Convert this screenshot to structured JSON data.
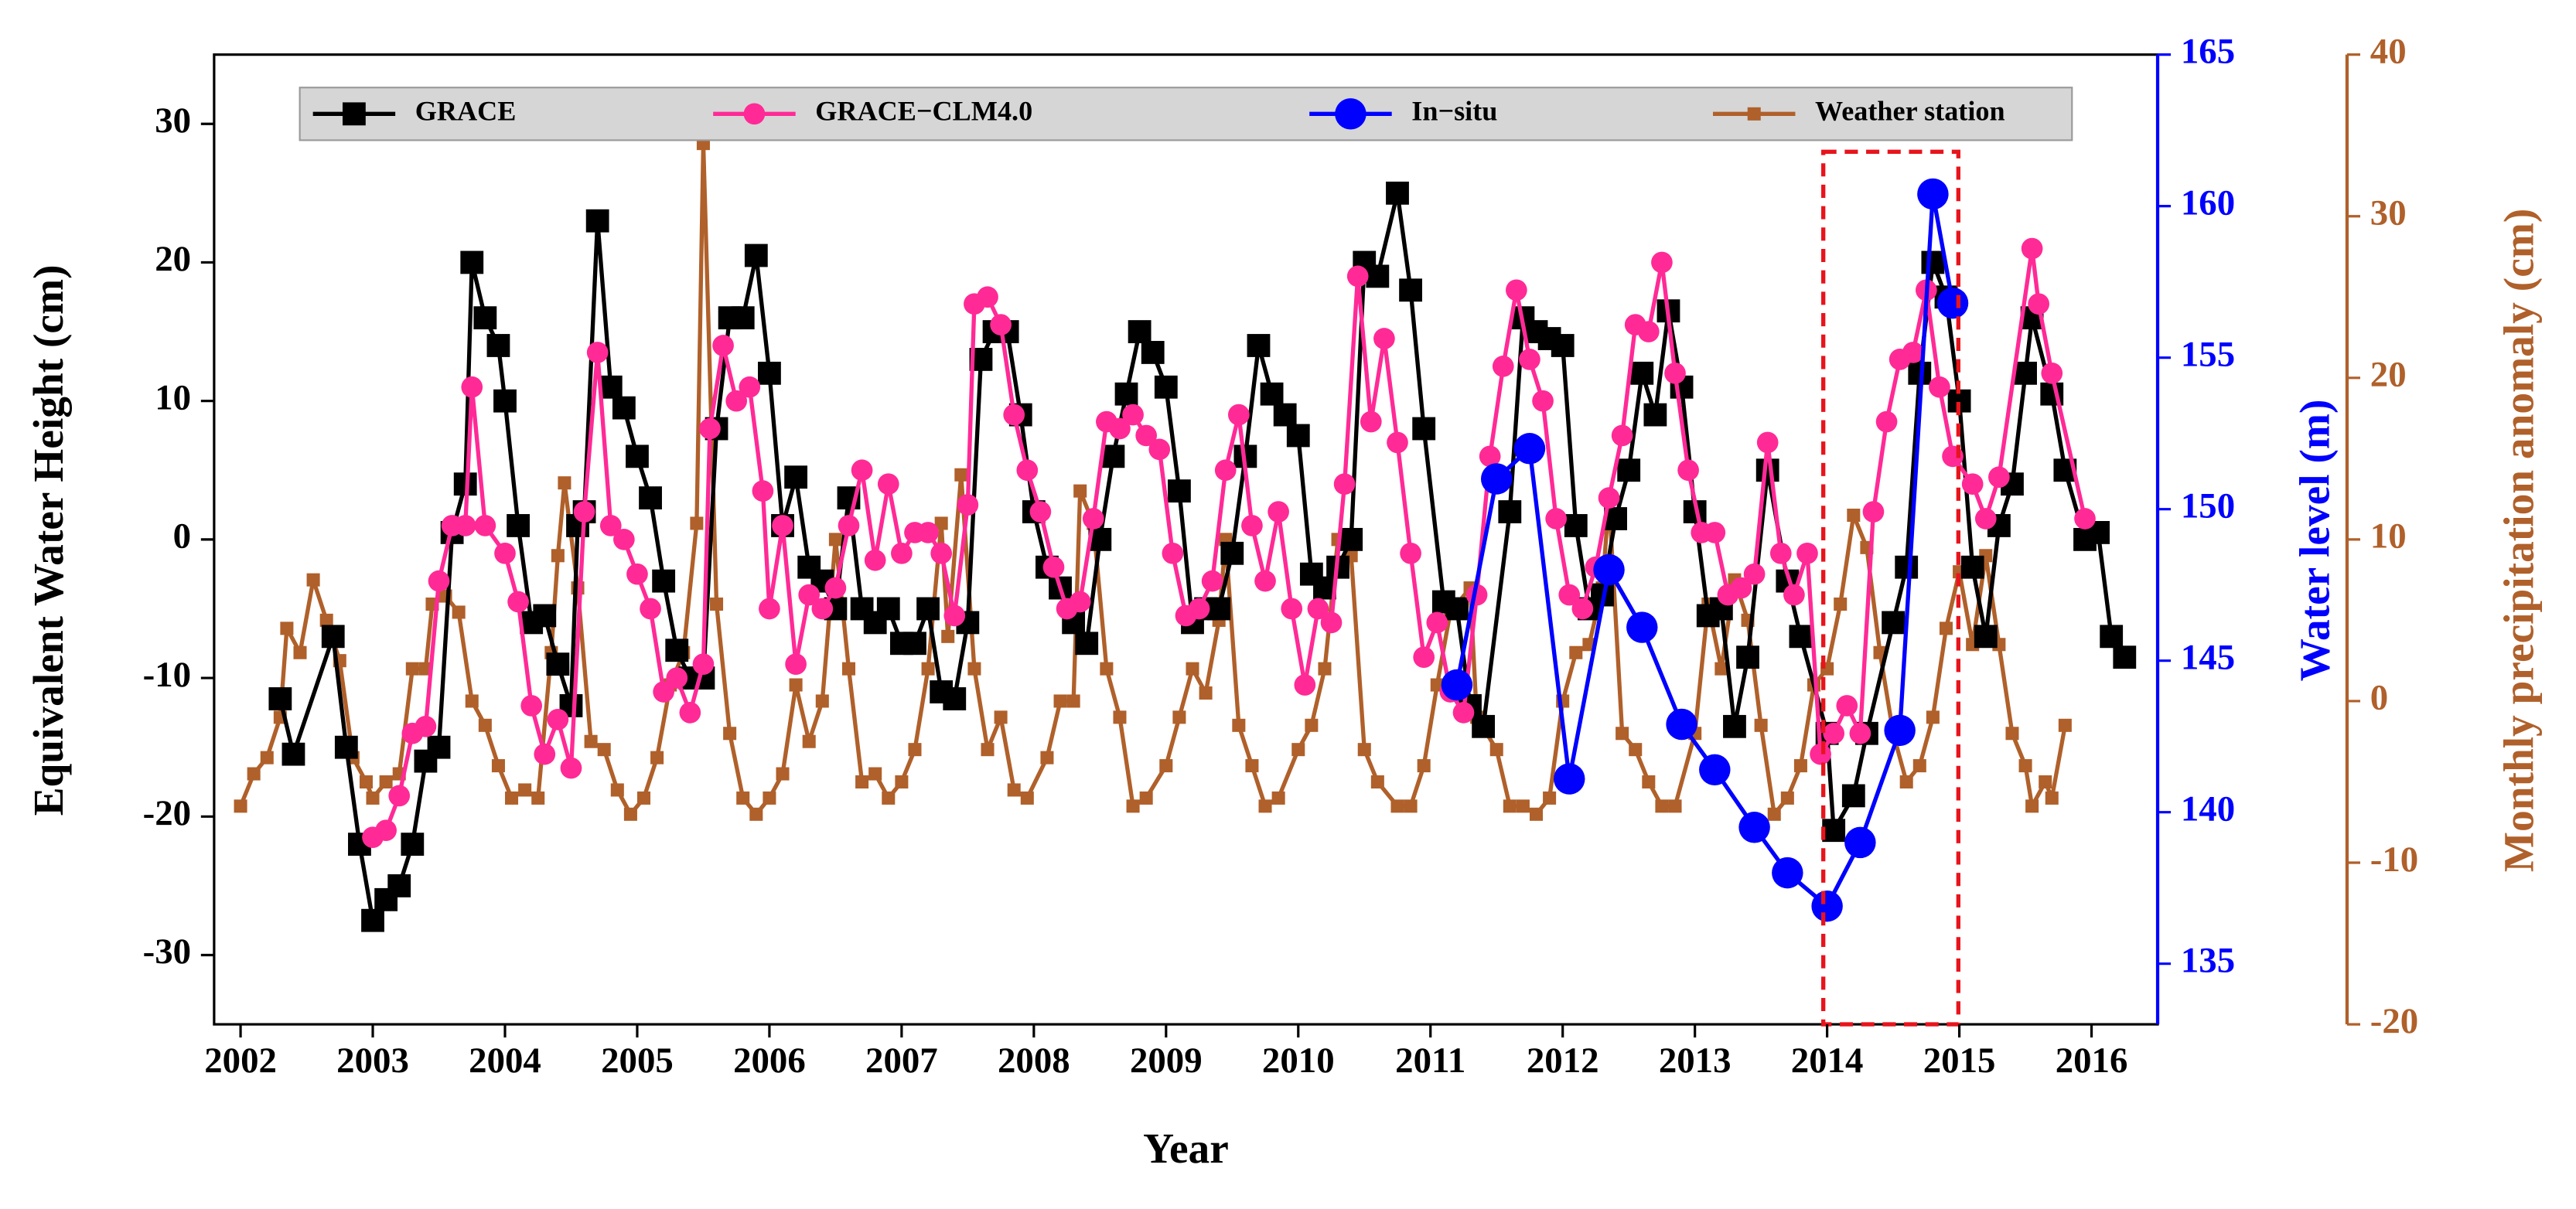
{
  "chart_data": {
    "type": "line",
    "xlabel": "Year",
    "ylabel": "Equivalent Water Height (cm)",
    "y2label": "Water level (m)",
    "y3label": "Monthly precipitation anomaly (cm)",
    "y2color": "#0000ff",
    "y3color": "#b0602a",
    "xlim": [
      2001.8,
      2016.5
    ],
    "xticks": [
      2002,
      2003,
      2004,
      2005,
      2006,
      2007,
      2008,
      2009,
      2010,
      2011,
      2012,
      2013,
      2014,
      2015,
      2016
    ],
    "ylim": [
      -35,
      35
    ],
    "yticks": [
      -30,
      -20,
      -10,
      0,
      10,
      20,
      30
    ],
    "y2lim": [
      133,
      165
    ],
    "y2ticks": [
      135,
      140,
      145,
      150,
      155,
      160,
      165
    ],
    "y3lim": [
      -20,
      40
    ],
    "y3ticks": [
      -20,
      -10,
      0,
      10,
      20,
      30,
      40
    ],
    "legend": "top",
    "series": [
      {
        "name": "GRACE",
        "color": "#000000",
        "marker": "square",
        "axis": "y",
        "x": [
          2002.3,
          2002.4,
          2002.7,
          2002.8,
          2002.9,
          2003.0,
          2003.1,
          2003.2,
          2003.3,
          2003.4,
          2003.5,
          2003.6,
          2003.7,
          2003.75,
          2003.85,
          2003.95,
          2004.0,
          2004.1,
          2004.2,
          2004.3,
          2004.4,
          2004.5,
          2004.55,
          2004.6,
          2004.7,
          2004.8,
          2004.9,
          2005.0,
          2005.1,
          2005.2,
          2005.3,
          2005.4,
          2005.5,
          2005.6,
          2005.7,
          2005.8,
          2005.9,
          2006.0,
          2006.1,
          2006.2,
          2006.3,
          2006.4,
          2006.5,
          2006.6,
          2006.7,
          2006.8,
          2006.9,
          2007.0,
          2007.1,
          2007.2,
          2007.3,
          2007.4,
          2007.5,
          2007.6,
          2007.7,
          2007.8,
          2007.9,
          2008.0,
          2008.1,
          2008.2,
          2008.3,
          2008.4,
          2008.5,
          2008.6,
          2008.7,
          2008.8,
          2008.9,
          2009.0,
          2009.1,
          2009.2,
          2009.3,
          2009.4,
          2009.5,
          2009.6,
          2009.7,
          2009.8,
          2009.9,
          2010.0,
          2010.1,
          2010.2,
          2010.3,
          2010.4,
          2010.5,
          2010.6,
          2010.75,
          2010.85,
          2010.95,
          2011.1,
          2011.2,
          2011.3,
          2011.4,
          2011.6,
          2011.7,
          2011.8,
          2011.9,
          2012.0,
          2012.1,
          2012.2,
          2012.3,
          2012.4,
          2012.5,
          2012.6,
          2012.7,
          2012.8,
          2012.9,
          2013.0,
          2013.1,
          2013.2,
          2013.3,
          2013.4,
          2013.55,
          2013.7,
          2013.8,
          2014.0,
          2014.05,
          2014.2,
          2014.3,
          2014.5,
          2014.6,
          2014.7,
          2014.8,
          2014.9,
          2015.0,
          2015.1,
          2015.2,
          2015.3,
          2015.4,
          2015.5,
          2015.55,
          2015.7,
          2015.8,
          2015.95,
          2016.05,
          2016.15,
          2016.25
        ],
        "values": [
          -11.5,
          -15.5,
          -7,
          -15,
          -22,
          -27.5,
          -26,
          -25,
          -22,
          -16,
          -15,
          0.5,
          4,
          20,
          16,
          14,
          10,
          1,
          -6,
          -5.5,
          -9,
          -12,
          1,
          2,
          23,
          11,
          9.5,
          6,
          3,
          -3,
          -8,
          -10,
          -10,
          8,
          16,
          16,
          20.5,
          12,
          1,
          4.5,
          -2,
          -3,
          -5,
          3,
          -5,
          -6,
          -5,
          -7.5,
          -7.5,
          -5,
          -11,
          -11.5,
          -6,
          13,
          15,
          15,
          9,
          2,
          -2,
          -3.5,
          -6,
          -7.5,
          0,
          6,
          10.5,
          15,
          13.5,
          11,
          3.5,
          -6,
          -5,
          -5,
          -1,
          6,
          14,
          10.5,
          9,
          7.5,
          -2.5,
          -3.5,
          -2,
          0,
          20,
          19,
          25,
          18,
          8,
          -4.5,
          -5,
          -12,
          -13.5,
          2,
          16,
          15,
          14.5,
          14,
          1,
          -5,
          -4,
          1.5,
          5,
          12,
          9,
          16.5,
          11,
          2,
          -5.5,
          -5,
          -13.5,
          -8.5,
          5,
          -3,
          -7,
          -14,
          -21,
          -18.5,
          -14,
          -6,
          -2,
          12,
          20,
          17.5,
          10,
          -2,
          -7,
          1,
          4,
          12,
          16,
          10.5,
          5,
          0,
          0.5,
          -7,
          -8.5
        ]
      },
      {
        "name": "GRACE−CLM4.0",
        "color": "#ff2a96",
        "marker": "circle",
        "axis": "y",
        "x": [
          2003.0,
          2003.1,
          2003.2,
          2003.3,
          2003.4,
          2003.5,
          2003.6,
          2003.7,
          2003.75,
          2003.85,
          2004.0,
          2004.1,
          2004.2,
          2004.3,
          2004.4,
          2004.5,
          2004.6,
          2004.7,
          2004.8,
          2004.9,
          2005.0,
          2005.1,
          2005.2,
          2005.3,
          2005.4,
          2005.5,
          2005.55,
          2005.65,
          2005.75,
          2005.85,
          2005.95,
          2006.0,
          2006.1,
          2006.2,
          2006.3,
          2006.4,
          2006.5,
          2006.6,
          2006.7,
          2006.8,
          2006.9,
          2007.0,
          2007.1,
          2007.2,
          2007.3,
          2007.4,
          2007.5,
          2007.55,
          2007.65,
          2007.75,
          2007.85,
          2007.95,
          2008.05,
          2008.15,
          2008.25,
          2008.35,
          2008.45,
          2008.55,
          2008.65,
          2008.75,
          2008.85,
          2008.95,
          2009.05,
          2009.15,
          2009.25,
          2009.35,
          2009.45,
          2009.55,
          2009.65,
          2009.75,
          2009.85,
          2009.95,
          2010.05,
          2010.15,
          2010.25,
          2010.35,
          2010.45,
          2010.55,
          2010.65,
          2010.75,
          2010.85,
          2010.95,
          2011.05,
          2011.15,
          2011.25,
          2011.35,
          2011.45,
          2011.55,
          2011.65,
          2011.75,
          2011.85,
          2011.95,
          2012.05,
          2012.15,
          2012.25,
          2012.35,
          2012.45,
          2012.55,
          2012.65,
          2012.75,
          2012.85,
          2012.95,
          2013.05,
          2013.15,
          2013.25,
          2013.35,
          2013.45,
          2013.55,
          2013.65,
          2013.75,
          2013.85,
          2013.95,
          2014.05,
          2014.15,
          2014.25,
          2014.35,
          2014.45,
          2014.55,
          2014.65,
          2014.75,
          2014.85,
          2014.95,
          2015.1,
          2015.2,
          2015.3,
          2015.55,
          2015.6,
          2015.7,
          2015.95
        ],
        "values": [
          -21.5,
          -21,
          -18.5,
          -14,
          -13.5,
          -3,
          1,
          1,
          11,
          1,
          -1,
          -4.5,
          -12,
          -15.5,
          -13,
          -16.5,
          2,
          13.5,
          1,
          0,
          -2.5,
          -5,
          -11,
          -10,
          -12.5,
          -9,
          8,
          14,
          10,
          11,
          3.5,
          -5,
          1,
          -9,
          -4,
          -5,
          -3.5,
          1,
          5,
          -1.5,
          4,
          -1,
          0.5,
          0.5,
          -1,
          -5.5,
          2.5,
          17,
          17.5,
          15.5,
          9,
          5,
          2,
          -2,
          -5,
          -4.5,
          1.5,
          8.5,
          8,
          9,
          7.5,
          6.5,
          -1,
          -5.5,
          -5,
          -3,
          5,
          9,
          1,
          -3,
          2,
          -5,
          -10.5,
          -5,
          -6,
          4,
          19,
          8.5,
          14.5,
          7,
          -1,
          -8.5,
          -6,
          -11,
          -12.5,
          -4,
          6,
          12.5,
          18,
          13,
          10,
          1.5,
          -4,
          -5,
          -2,
          3,
          7.5,
          15.5,
          15,
          20,
          12,
          5,
          0.5,
          0.5,
          -4,
          -3.5,
          -2.5,
          7,
          -1,
          -4,
          -1,
          -15.5,
          -14,
          -12,
          -14,
          2,
          8.5,
          13,
          13.5,
          18,
          11,
          6,
          4,
          1.5,
          4.5,
          21,
          17,
          12,
          1.5
        ]
      },
      {
        "name": "In−situ",
        "color": "#0000ff",
        "marker": "circle",
        "axis": "y2",
        "x": [
          2011.2,
          2011.5,
          2011.75,
          2012.05,
          2012.35,
          2012.6,
          2012.9,
          2013.15,
          2013.45,
          2013.7,
          2014.0,
          2014.25,
          2014.55,
          2014.8,
          2014.95
        ],
        "values": [
          144.2,
          151,
          152,
          141.1,
          148,
          146.1,
          142.9,
          141.4,
          139.5,
          138,
          136.9,
          139,
          142.7,
          160.4,
          156.8
        ]
      },
      {
        "name": "Weather station",
        "color": "#b0602a",
        "marker": "square",
        "axis": "y3",
        "x": [
          2002.0,
          2002.1,
          2002.2,
          2002.3,
          2002.35,
          2002.45,
          2002.55,
          2002.65,
          2002.75,
          2002.85,
          2002.95,
          2003.0,
          2003.1,
          2003.2,
          2003.3,
          2003.4,
          2003.45,
          2003.55,
          2003.65,
          2003.75,
          2003.85,
          2003.95,
          2004.05,
          2004.15,
          2004.25,
          2004.35,
          2004.4,
          2004.45,
          2004.55,
          2004.65,
          2004.75,
          2004.85,
          2004.95,
          2005.05,
          2005.15,
          2005.25,
          2005.35,
          2005.45,
          2005.5,
          2005.6,
          2005.7,
          2005.8,
          2005.9,
          2006.0,
          2006.1,
          2006.2,
          2006.3,
          2006.4,
          2006.5,
          2006.6,
          2006.7,
          2006.8,
          2006.9,
          2007.0,
          2007.1,
          2007.2,
          2007.3,
          2007.35,
          2007.45,
          2007.55,
          2007.65,
          2007.75,
          2007.85,
          2007.95,
          2008.1,
          2008.2,
          2008.3,
          2008.35,
          2008.45,
          2008.55,
          2008.65,
          2008.75,
          2008.85,
          2009.0,
          2009.1,
          2009.2,
          2009.3,
          2009.4,
          2009.45,
          2009.55,
          2009.65,
          2009.75,
          2009.85,
          2010.0,
          2010.1,
          2010.2,
          2010.3,
          2010.4,
          2010.5,
          2010.6,
          2010.75,
          2010.85,
          2010.95,
          2011.05,
          2011.15,
          2011.3,
          2011.35,
          2011.5,
          2011.6,
          2011.7,
          2011.8,
          2011.9,
          2012.0,
          2012.1,
          2012.2,
          2012.3,
          2012.35,
          2012.45,
          2012.55,
          2012.65,
          2012.75,
          2012.85,
          2013.0,
          2013.1,
          2013.2,
          2013.3,
          2013.4,
          2013.5,
          2013.6,
          2013.7,
          2013.8,
          2013.9,
          2014.0,
          2014.1,
          2014.2,
          2014.3,
          2014.4,
          2014.5,
          2014.6,
          2014.7,
          2014.8,
          2014.9,
          2015.0,
          2015.1,
          2015.2,
          2015.3,
          2015.4,
          2015.5,
          2015.55,
          2015.65,
          2015.7,
          2015.8
        ],
        "values": [
          -6.5,
          -4.5,
          -3.5,
          -1,
          4.5,
          3,
          7.5,
          5,
          2.5,
          -3.5,
          -5,
          -6,
          -5,
          -4.5,
          2,
          2,
          6,
          6.5,
          5.5,
          0,
          -1.5,
          -4,
          -6,
          -5.5,
          -6,
          3,
          9,
          13.5,
          7,
          -2.5,
          -3,
          -5.5,
          -7,
          -6,
          -3.5,
          1,
          3,
          11,
          34.5,
          6,
          -2,
          -6,
          -7,
          -6,
          -4.5,
          1,
          -2.5,
          0,
          10,
          2,
          -5,
          -4.5,
          -6,
          -5,
          -3,
          2,
          11,
          4,
          14,
          2,
          -3,
          -1,
          -5.5,
          -6,
          -3.5,
          0,
          0,
          13,
          11,
          2,
          -1,
          -6.5,
          -6,
          -4,
          -1,
          2,
          0.5,
          5,
          10,
          -1.5,
          -4,
          -6.5,
          -6,
          -3,
          -1.5,
          2,
          10,
          9,
          -3,
          -5,
          -6.5,
          -6.5,
          -4,
          1,
          5.5,
          7,
          -1,
          -3,
          -6.5,
          -6.5,
          -7,
          -6,
          0,
          3,
          3.5,
          7,
          12.5,
          -2,
          -3,
          -5,
          -6.5,
          -6.5,
          -2,
          6,
          2,
          7.5,
          5,
          -1.5,
          -7,
          -6,
          -4,
          1,
          2,
          6,
          11.5,
          9.5,
          3,
          -2,
          -5,
          -4,
          -1,
          4.5,
          8,
          3.5,
          9,
          3.5,
          -2,
          -4,
          -6.5,
          -5,
          -6,
          -1.5
        ]
      }
    ]
  }
}
